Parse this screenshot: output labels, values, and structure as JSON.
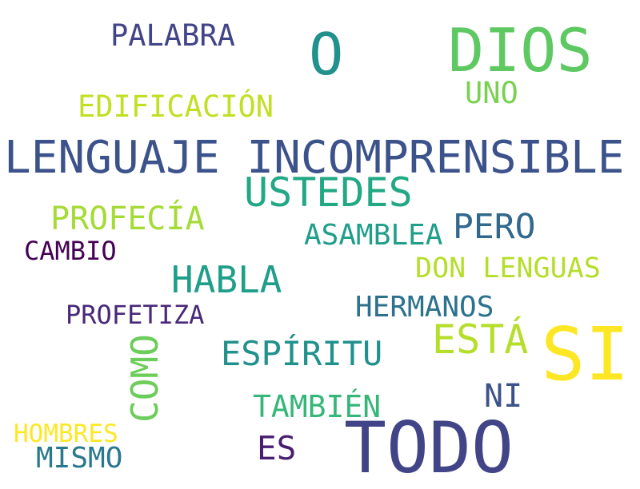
{
  "words": {
    "palabra": {
      "text": "PALABRA",
      "color": "#414487"
    },
    "o": {
      "text": "O",
      "color": "#21918c"
    },
    "dios": {
      "text": "DIOS",
      "color": "#5ec962"
    },
    "uno": {
      "text": "UNO",
      "color": "#7ad151"
    },
    "edificacion": {
      "text": "EDIFICACIÓN",
      "color": "#c2df23"
    },
    "lenguaje_incomprensible": {
      "text": "LENGUAJE INCOMPRENSIBLE",
      "color": "#3b528b"
    },
    "ustedes": {
      "text": "USTEDES",
      "color": "#22a884"
    },
    "profecia": {
      "text": "PROFECÍA",
      "color": "#a5db36"
    },
    "pero": {
      "text": "PERO",
      "color": "#31688e"
    },
    "asamblea": {
      "text": "ASAMBLEA",
      "color": "#1f9e89"
    },
    "cambio": {
      "text": "CAMBIO",
      "color": "#440154"
    },
    "don_lenguas": {
      "text": "DON LENGUAS",
      "color": "#b5de2b"
    },
    "habla": {
      "text": "HABLA",
      "color": "#1f9e89"
    },
    "hermanos": {
      "text": "HERMANOS",
      "color": "#2c728e"
    },
    "profetiza": {
      "text": "PROFETIZA",
      "color": "#482878"
    },
    "esta": {
      "text": "ESTÁ",
      "color": "#b5de2b"
    },
    "si": {
      "text": "SI",
      "color": "#fde725"
    },
    "como": {
      "text": "COMO",
      "color": "#6ccd5a"
    },
    "espiritu": {
      "text": "ESPÍRITU",
      "color": "#21918c"
    },
    "ni": {
      "text": "NI",
      "color": "#3b528b"
    },
    "tambien": {
      "text": "TAMBIÉN",
      "color": "#35b779"
    },
    "hombres": {
      "text": "HOMBRES",
      "color": "#fde725"
    },
    "mismo": {
      "text": "MISMO",
      "color": "#2a788e"
    },
    "es": {
      "text": "ES",
      "color": "#481f70"
    },
    "todo": {
      "text": "TODO",
      "color": "#414487"
    }
  }
}
